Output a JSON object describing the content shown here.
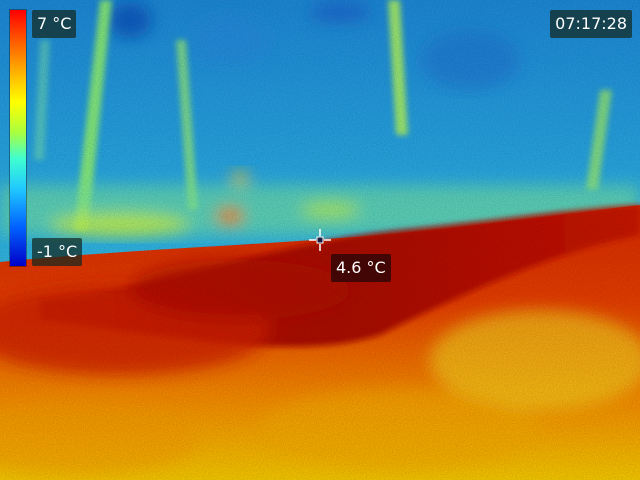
{
  "scale": {
    "max_label": "7 °C",
    "min_label": "-1 °C",
    "palette": [
      "#ff0000",
      "#ffb000",
      "#ffff00",
      "#40ffd0",
      "#20c8ff",
      "#0000c8"
    ]
  },
  "status": {
    "time": "07:17:28"
  },
  "spot": {
    "reading": "4.6 °C",
    "icon": "crosshair-icon"
  }
}
